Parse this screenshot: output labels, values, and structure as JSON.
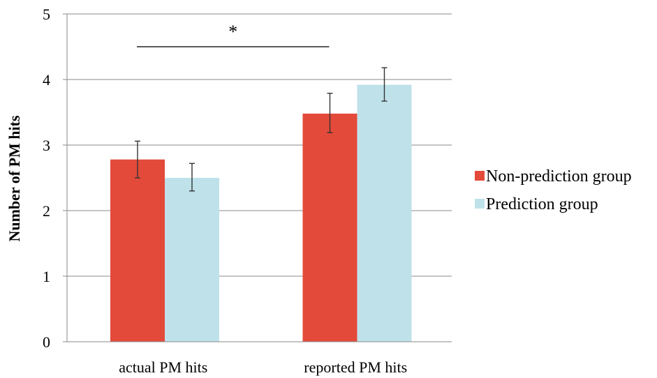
{
  "chart_data": {
    "type": "bar",
    "title": "",
    "xlabel": "",
    "ylabel": "Number of PM hits",
    "ylim": [
      0,
      5
    ],
    "yticks": [
      0,
      1,
      2,
      3,
      4,
      5
    ],
    "grid": true,
    "legend_position": "right",
    "categories": [
      "actual PM hits",
      "reported PM hits"
    ],
    "series": [
      {
        "name": "Non-prediction group",
        "color": "#e34a3a",
        "values": [
          2.78,
          3.48
        ],
        "error": [
          [
            2.5,
            3.06
          ],
          [
            3.19,
            3.79
          ]
        ]
      },
      {
        "name": "Prediction group",
        "color": "#bfe2ea",
        "values": [
          2.5,
          3.92
        ],
        "error": [
          [
            2.3,
            2.72
          ],
          [
            3.67,
            4.18
          ]
        ]
      }
    ],
    "annotation": {
      "text": "*",
      "from_category": 0,
      "to_category": 1,
      "y": 4.5
    }
  }
}
